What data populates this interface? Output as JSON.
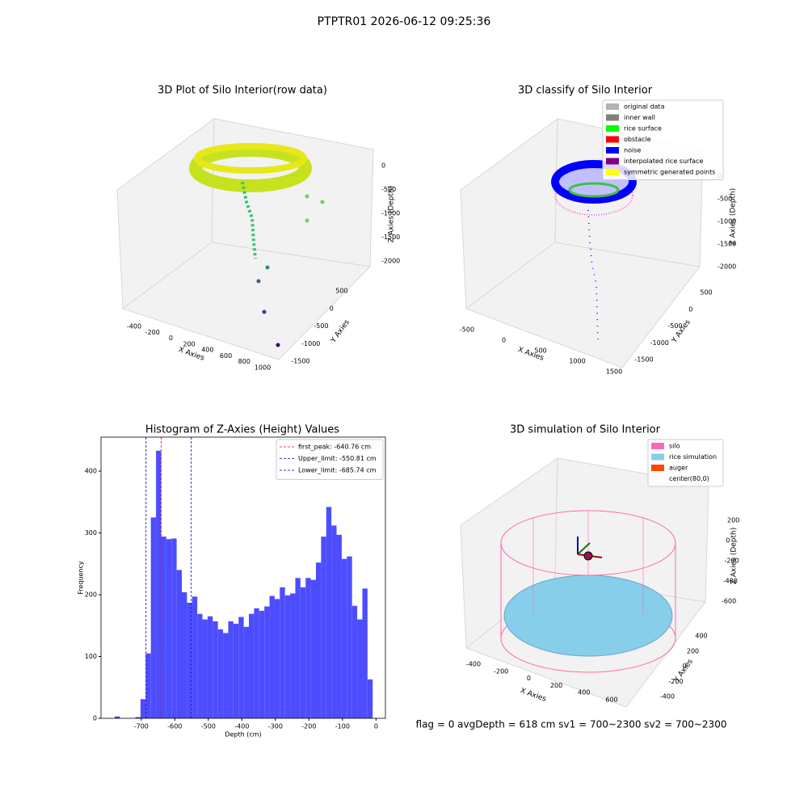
{
  "suptitle": "PTPTR01 2026-06-12 09:25:36",
  "footer": "flag = 0     avgDepth = 618 cm  sv1 = 700~2300  sv2 = 700~2300",
  "chart_data": [
    {
      "type": "scatter3d",
      "title": "3D Plot of Silo Interior(row data)",
      "xlabel": "X Axies",
      "ylabel": "Y Axies",
      "zlabel": "Z Axies (Depth)",
      "xticks": [
        -400,
        -200,
        0,
        200,
        400,
        600,
        800,
        1000
      ],
      "yticks": [
        500,
        0,
        -500,
        -1000,
        -1500
      ],
      "zticks": [
        0,
        -500,
        -1000,
        -1500,
        -2000
      ]
    },
    {
      "type": "histogram",
      "title": "Histogram of Z-Axies (Height) Values",
      "xlabel": "Depth (cm)",
      "ylabel": "Frequency",
      "color": "#4d4dff",
      "bins": [
        -779,
        -763.62,
        -748.24,
        -732.86,
        -717.48,
        -702.1,
        -686.72,
        -671.34,
        -655.96,
        -640.58,
        -625.2,
        -609.82,
        -594.44,
        -579.06,
        -563.68,
        -548.3,
        -532.92,
        -517.54,
        -502.16,
        -486.78,
        -471.4,
        -456.02,
        -440.64,
        -425.26,
        -409.88,
        -394.5,
        -379.12,
        -363.74,
        -348.36,
        -332.98,
        -317.6,
        -302.22,
        -286.84,
        -271.46,
        -256.08,
        -240.7,
        -225.32,
        -209.94,
        -194.56,
        -179.18,
        -163.8,
        -148.42,
        -133.04,
        -117.66,
        -102.28,
        -86.9,
        -71.52,
        -56.14,
        -40.76,
        -25.38,
        -10
      ],
      "values": [
        3,
        0,
        0,
        0,
        2,
        31,
        105,
        325,
        433,
        294,
        290,
        291,
        240,
        204,
        187,
        197,
        169,
        160,
        165,
        157,
        144,
        138,
        157,
        153,
        164,
        148,
        169,
        178,
        174,
        181,
        198,
        193,
        212,
        199,
        202,
        227,
        212,
        227,
        224,
        252,
        294,
        342,
        312,
        297,
        258,
        262,
        182,
        160,
        210,
        63
      ],
      "xlim": [
        -820,
        28
      ],
      "ylim": [
        0,
        455
      ],
      "xticks": [
        -700,
        -600,
        -500,
        -400,
        -300,
        -200,
        -100,
        0
      ],
      "yticks": [
        0,
        100,
        200,
        300,
        400
      ],
      "vlines": [
        {
          "name": "first_peak: -640.76 cm",
          "value": -640.76,
          "color": "#ff0000"
        },
        {
          "name": "Upper_limit: -550.81 cm",
          "value": -550.81,
          "color": "#0000aa"
        },
        {
          "name": "Lower_limit: -685.74 cm",
          "value": -685.74,
          "color": "#0000aa"
        }
      ],
      "legend": "upper right"
    },
    {
      "type": "scatter3d",
      "title": "3D classify of Silo Interior",
      "xlabel": "X Axies",
      "ylabel": "Y Axies",
      "zlabel": "Z Axies (Depth)",
      "xticks": [
        -500,
        0,
        500,
        1000,
        1500
      ],
      "yticks": [
        500,
        0,
        -500,
        -1000,
        -1500
      ],
      "zticks": [
        0,
        -500,
        -1000,
        -1500,
        -2000
      ],
      "legend_entries": [
        {
          "name": "original data",
          "color": "#b3b3b3"
        },
        {
          "name": "inner wall",
          "color": "#808080"
        },
        {
          "name": "rice surface",
          "color": "#00ff00"
        },
        {
          "name": "obstacle",
          "color": "#ff0000"
        },
        {
          "name": "noise",
          "color": "#0000ff"
        },
        {
          "name": "interpolated rice surface",
          "color": "#800080"
        },
        {
          "name": "symmetric generated points",
          "color": "#ffff00"
        }
      ]
    },
    {
      "type": "surface3d",
      "title": "3D simulation of Silo Interior",
      "xlabel": "X Axies",
      "ylabel": "Y Axies",
      "zlabel": "Z Axies (Depth)",
      "xticks": [
        -400,
        -200,
        0,
        200,
        400,
        600
      ],
      "yticks": [
        400,
        200,
        0,
        -200,
        -400
      ],
      "zticks": [
        200,
        0,
        -200,
        -400,
        -600
      ],
      "legend_entries": [
        {
          "name": "silo",
          "color": "#ff69b4"
        },
        {
          "name": "rice simulation",
          "color": "#87ceeb"
        },
        {
          "name": "auger",
          "color": "#ff4500"
        },
        {
          "name": "center(80,0)"
        }
      ]
    }
  ]
}
